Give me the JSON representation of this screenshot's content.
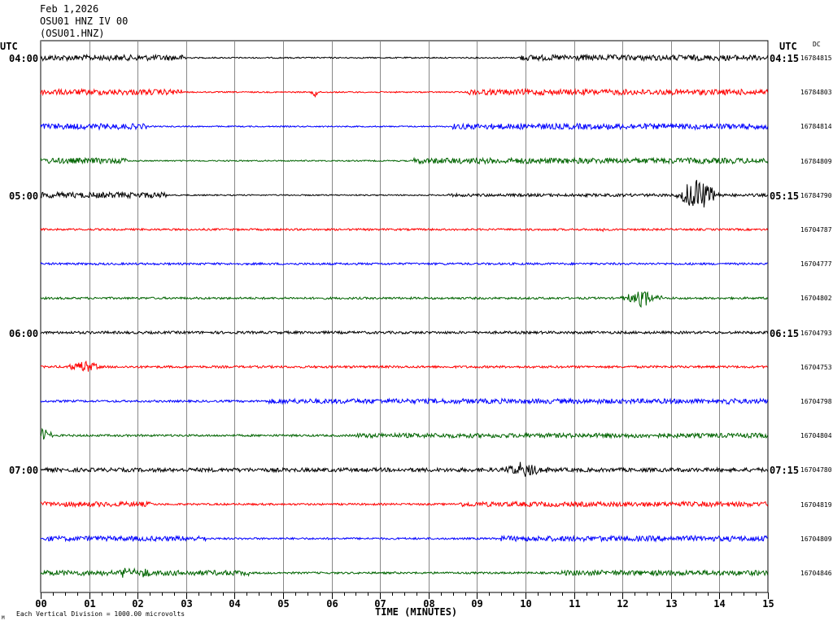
{
  "header": {
    "date": "Feb 1,2026",
    "station": "OSU01 HNZ IV 00",
    "channel": "(OSU01.HNZ)"
  },
  "axes": {
    "left_utc_label": "UTC",
    "right_utc_label": "UTC",
    "dc_label": "DC",
    "x_title": "TIME (MINUTES)",
    "vertical_division_note": "Each Vertical Division = 1000.00 microvolts",
    "corner_mark": "M"
  },
  "chart_data": {
    "type": "line",
    "title": "OSU01 HNZ IV 00",
    "xlabel": "TIME (MINUTES)",
    "ylabel": "UTC",
    "x_ticks": [
      "00",
      "01",
      "02",
      "03",
      "04",
      "05",
      "06",
      "07",
      "08",
      "09",
      "10",
      "11",
      "12",
      "13",
      "14",
      "15"
    ],
    "xlim": [
      0,
      15
    ],
    "grid": true,
    "colors": [
      "#000000",
      "#ff0000",
      "#0000ff",
      "#006400"
    ],
    "rows": [
      {
        "left": "04:00",
        "right": "04:15",
        "dc": "16784815",
        "color": "#000000",
        "segments": [
          [
            0,
            3.0,
            3.5
          ],
          [
            3.0,
            9.85,
            0.8
          ],
          [
            9.85,
            15,
            3.5
          ]
        ],
        "events": []
      },
      {
        "left": "",
        "right": "",
        "dc": "16784803",
        "color": "#ff0000",
        "segments": [
          [
            0,
            2.9,
            3.5
          ],
          [
            2.9,
            8.8,
            0.8
          ],
          [
            8.8,
            15,
            3.5
          ]
        ],
        "events": [
          [
            5.65,
            10,
            0.08
          ]
        ]
      },
      {
        "left": "",
        "right": "",
        "dc": "16784814",
        "color": "#0000ff",
        "segments": [
          [
            0,
            2.2,
            3.5
          ],
          [
            2.2,
            8.5,
            0.8
          ],
          [
            8.5,
            15,
            3.5
          ]
        ],
        "events": []
      },
      {
        "left": "",
        "right": "",
        "dc": "16784809",
        "color": "#006400",
        "segments": [
          [
            0,
            1.8,
            3.5
          ],
          [
            1.8,
            7.7,
            0.8
          ],
          [
            7.7,
            15,
            3.5
          ]
        ],
        "events": []
      },
      {
        "left": "05:00",
        "right": "05:15",
        "dc": "16784790",
        "color": "#000000",
        "segments": [
          [
            0,
            2.6,
            3.5
          ],
          [
            2.6,
            8.4,
            0.8
          ],
          [
            8.4,
            15,
            1.8
          ]
        ],
        "events": [
          [
            13.55,
            22,
            0.5
          ]
        ]
      },
      {
        "left": "",
        "right": "",
        "dc": "16704787",
        "color": "#ff0000",
        "segments": [
          [
            0,
            15,
            1.2
          ]
        ],
        "events": [
          [
            11.55,
            3,
            0.1
          ]
        ]
      },
      {
        "left": "",
        "right": "",
        "dc": "16704777",
        "color": "#0000ff",
        "segments": [
          [
            0,
            15,
            1.3
          ]
        ],
        "events": []
      },
      {
        "left": "",
        "right": "",
        "dc": "16704802",
        "color": "#006400",
        "segments": [
          [
            0,
            15,
            1.3
          ]
        ],
        "events": [
          [
            12.4,
            10,
            0.5
          ]
        ]
      },
      {
        "left": "06:00",
        "right": "06:15",
        "dc": "16704793",
        "color": "#000000",
        "segments": [
          [
            0,
            15,
            1.6
          ]
        ],
        "events": []
      },
      {
        "left": "",
        "right": "",
        "dc": "16704753",
        "color": "#ff0000",
        "segments": [
          [
            0,
            15,
            1.4
          ]
        ],
        "events": [
          [
            0.9,
            8,
            0.4
          ]
        ]
      },
      {
        "left": "",
        "right": "",
        "dc": "16704798",
        "color": "#0000ff",
        "segments": [
          [
            0,
            4.7,
            1.3
          ],
          [
            4.7,
            15,
            3.0
          ]
        ],
        "events": [
          [
            14.2,
            4,
            0.2
          ]
        ]
      },
      {
        "left": "",
        "right": "",
        "dc": "16704804",
        "color": "#006400",
        "segments": [
          [
            0,
            6.5,
            1.3
          ],
          [
            6.5,
            15,
            2.8
          ]
        ],
        "events": [
          [
            0.05,
            9,
            0.25
          ]
        ]
      },
      {
        "left": "07:00",
        "right": "07:15",
        "dc": "16704780",
        "color": "#000000",
        "segments": [
          [
            0,
            15,
            2.4
          ]
        ],
        "events": [
          [
            10.0,
            10,
            0.5
          ]
        ]
      },
      {
        "left": "",
        "right": "",
        "dc": "16704819",
        "color": "#ff0000",
        "segments": [
          [
            0,
            2.3,
            3.0
          ],
          [
            2.3,
            8.6,
            1.2
          ],
          [
            8.6,
            15,
            3.0
          ]
        ],
        "events": []
      },
      {
        "left": "",
        "right": "",
        "dc": "16704809",
        "color": "#0000ff",
        "segments": [
          [
            0,
            3.4,
            3.0
          ],
          [
            3.4,
            9.4,
            1.2
          ],
          [
            9.4,
            15,
            3.3
          ]
        ],
        "events": []
      },
      {
        "left": "",
        "right": "",
        "dc": "16704846",
        "color": "#006400",
        "segments": [
          [
            0,
            4.3,
            3.2
          ],
          [
            4.3,
            10.7,
            1.2
          ],
          [
            10.7,
            15,
            3.2
          ]
        ],
        "events": [
          [
            1.75,
            6,
            0.3
          ],
          [
            2.2,
            4,
            0.2
          ]
        ]
      }
    ]
  }
}
